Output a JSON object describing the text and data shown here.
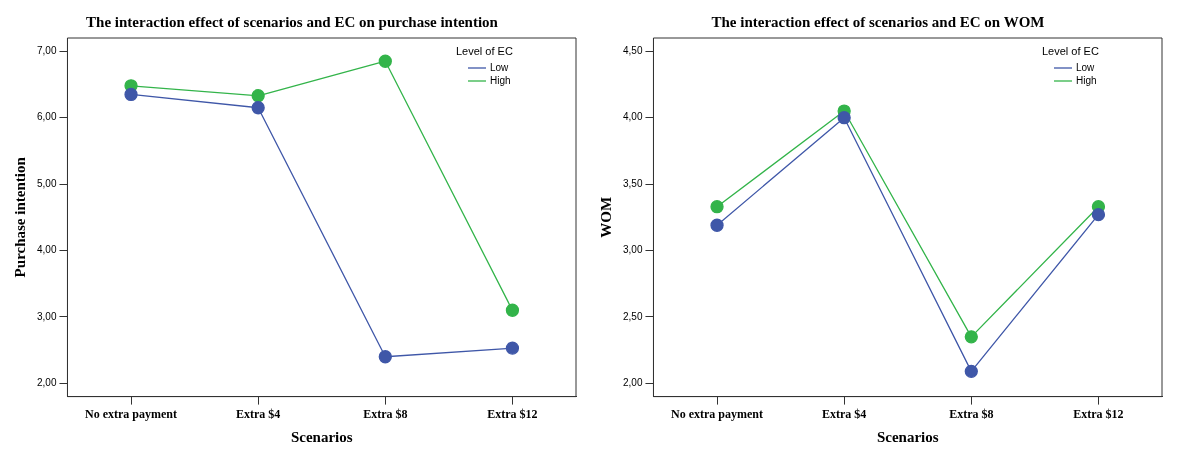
{
  "chart_data": [
    {
      "type": "line",
      "title": "The interaction effect of scenarios and EC on purchase intention",
      "xlabel": "Scenarios",
      "ylabel": "Purchase intention",
      "legend_title": "Level of EC",
      "categories": [
        "No extra payment",
        "Extra $4",
        "Extra $8",
        "Extra $12"
      ],
      "series": [
        {
          "name": "Low",
          "color": "#3f57a8",
          "values": [
            6.35,
            6.15,
            2.4,
            2.53
          ]
        },
        {
          "name": "High",
          "color": "#33b44a",
          "values": [
            6.48,
            6.33,
            6.85,
            3.1
          ]
        }
      ],
      "ylim": [
        1.8,
        7.2
      ],
      "yticks": [
        {
          "value": 2,
          "label": "2,00"
        },
        {
          "value": 3,
          "label": "3,00"
        },
        {
          "value": 4,
          "label": "4,00"
        },
        {
          "value": 5,
          "label": "5,00"
        },
        {
          "value": 6,
          "label": "6,00"
        },
        {
          "value": 7,
          "label": "7,00"
        }
      ],
      "grid": false,
      "legend": "top right",
      "marker": "circle",
      "line_style": "solid"
    },
    {
      "type": "line",
      "title": "The interaction effect of scenarios and EC on WOM",
      "xlabel": "Scenarios",
      "ylabel": "WOM",
      "legend_title": "Level of EC",
      "categories": [
        "No extra payment",
        "Extra $4",
        "Extra $8",
        "Extra $12"
      ],
      "series": [
        {
          "name": "Low",
          "color": "#3f57a8",
          "values": [
            3.19,
            4.0,
            2.09,
            3.27
          ]
        },
        {
          "name": "High",
          "color": "#33b44a",
          "values": [
            3.33,
            4.05,
            2.35,
            3.33
          ]
        }
      ],
      "ylim": [
        1.9,
        4.6
      ],
      "yticks": [
        {
          "value": 2,
          "label": "2,00"
        },
        {
          "value": 2.5,
          "label": "2,50"
        },
        {
          "value": 3,
          "label": "3,00"
        },
        {
          "value": 3.5,
          "label": "3,50"
        },
        {
          "value": 4,
          "label": "4,00"
        },
        {
          "value": 4.5,
          "label": "4,50"
        }
      ],
      "grid": false,
      "legend": "top right",
      "marker": "circle",
      "line_style": "solid"
    }
  ]
}
